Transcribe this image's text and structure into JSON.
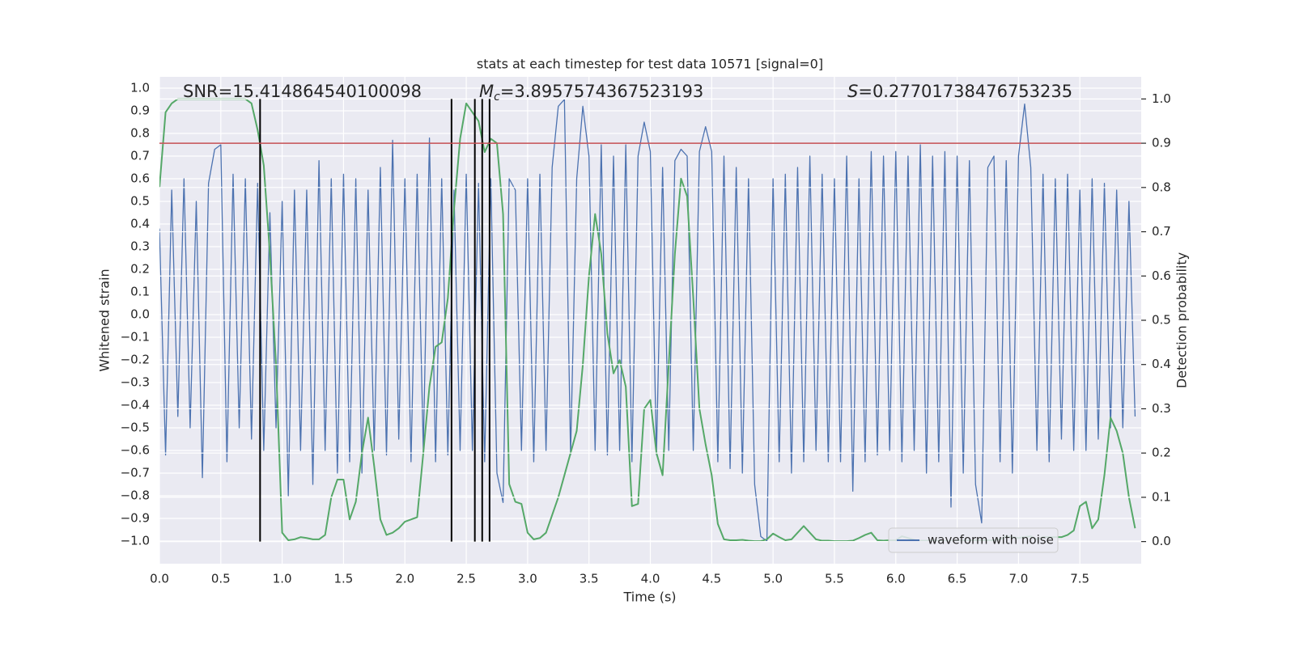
{
  "chart_data": {
    "type": "line",
    "title": "stats at each timestep for test data 10571 [signal=0]",
    "xlabel": "Time (s)",
    "ylabel": "Whitened strain",
    "y2label": "Detection probability",
    "annotations": [
      {
        "text": "SNR=15.414864540100098"
      },
      {
        "symbol": "M",
        "subscript": "c",
        "text": "=3.8957574367523193"
      },
      {
        "symbol": "S",
        "text": "=0.27701738476753235"
      }
    ],
    "xlim": [
      0,
      8
    ],
    "ylim": [
      -1.1,
      1.05
    ],
    "y2lim": [
      -0.05,
      1.05
    ],
    "xticks": [
      {
        "value": 0,
        "label": "0.0"
      },
      {
        "value": 0.5,
        "label": "0.5"
      },
      {
        "value": 1,
        "label": "1.0"
      },
      {
        "value": 1.5,
        "label": "1.5"
      },
      {
        "value": 2,
        "label": "2.0"
      },
      {
        "value": 2.5,
        "label": "2.5"
      },
      {
        "value": 3,
        "label": "3.0"
      },
      {
        "value": 3.5,
        "label": "3.5"
      },
      {
        "value": 4,
        "label": "4.0"
      },
      {
        "value": 4.5,
        "label": "4.5"
      },
      {
        "value": 5,
        "label": "5.0"
      },
      {
        "value": 5.5,
        "label": "5.5"
      },
      {
        "value": 6,
        "label": "6.0"
      },
      {
        "value": 6.5,
        "label": "6.5"
      },
      {
        "value": 7,
        "label": "7.0"
      },
      {
        "value": 7.5,
        "label": "7.5"
      }
    ],
    "yticks": [
      {
        "value": -1.0,
        "label": "−1.0"
      },
      {
        "value": -0.9,
        "label": "−0.9"
      },
      {
        "value": -0.8,
        "label": "−0.8"
      },
      {
        "value": -0.7,
        "label": "−0.7"
      },
      {
        "value": -0.6,
        "label": "−0.6"
      },
      {
        "value": -0.5,
        "label": "−0.5"
      },
      {
        "value": -0.4,
        "label": "−0.4"
      },
      {
        "value": -0.3,
        "label": "−0.3"
      },
      {
        "value": -0.2,
        "label": "−0.2"
      },
      {
        "value": -0.1,
        "label": "−0.1"
      },
      {
        "value": 0,
        "label": "0.0"
      },
      {
        "value": 0.1,
        "label": "0.1"
      },
      {
        "value": 0.2,
        "label": "0.2"
      },
      {
        "value": 0.3,
        "label": "0.3"
      },
      {
        "value": 0.4,
        "label": "0.4"
      },
      {
        "value": 0.5,
        "label": "0.5"
      },
      {
        "value": 0.6,
        "label": "0.6"
      },
      {
        "value": 0.7,
        "label": "0.7"
      },
      {
        "value": 0.8,
        "label": "0.8"
      },
      {
        "value": 0.9,
        "label": "0.9"
      },
      {
        "value": 1.0,
        "label": "1.0"
      }
    ],
    "y2ticks": [
      {
        "value": 0,
        "label": "0.0"
      },
      {
        "value": 0.1,
        "label": "0.1"
      },
      {
        "value": 0.2,
        "label": "0.2"
      },
      {
        "value": 0.3,
        "label": "0.3"
      },
      {
        "value": 0.4,
        "label": "0.4"
      },
      {
        "value": 0.5,
        "label": "0.5"
      },
      {
        "value": 0.6,
        "label": "0.6"
      },
      {
        "value": 0.7,
        "label": "0.7"
      },
      {
        "value": 0.8,
        "label": "0.8"
      },
      {
        "value": 0.9,
        "label": "0.9"
      },
      {
        "value": 1.0,
        "label": "1.0"
      }
    ],
    "grid": true,
    "legend": "lower right",
    "x": [
      0,
      0.05,
      0.1,
      0.15,
      0.2,
      0.25,
      0.3,
      0.35,
      0.4,
      0.45,
      0.5,
      0.55,
      0.6,
      0.65,
      0.7,
      0.75,
      0.8,
      0.85,
      0.9,
      0.95,
      1,
      1.05,
      1.1,
      1.15,
      1.2,
      1.25,
      1.3,
      1.35,
      1.4,
      1.45,
      1.5,
      1.55,
      1.6,
      1.65,
      1.7,
      1.75,
      1.8,
      1.85,
      1.9,
      1.95,
      2,
      2.05,
      2.1,
      2.15,
      2.2,
      2.25,
      2.3,
      2.35,
      2.4,
      2.45,
      2.5,
      2.55,
      2.6,
      2.65,
      2.7,
      2.75,
      2.8,
      2.85,
      2.9,
      2.95,
      3,
      3.05,
      3.1,
      3.15,
      3.2,
      3.25,
      3.3,
      3.35,
      3.4,
      3.45,
      3.5,
      3.55,
      3.6,
      3.65,
      3.7,
      3.75,
      3.8,
      3.85,
      3.9,
      3.95,
      4,
      4.05,
      4.1,
      4.15,
      4.2,
      4.25,
      4.3,
      4.35,
      4.4,
      4.45,
      4.5,
      4.55,
      4.6,
      4.65,
      4.7,
      4.75,
      4.8,
      4.85,
      4.9,
      4.95,
      5,
      5.05,
      5.1,
      5.15,
      5.2,
      5.25,
      5.3,
      5.35,
      5.4,
      5.45,
      5.5,
      5.55,
      5.6,
      5.65,
      5.7,
      5.75,
      5.8,
      5.85,
      5.9,
      5.95,
      6,
      6.05,
      6.1,
      6.15,
      6.2,
      6.25,
      6.3,
      6.35,
      6.4,
      6.45,
      6.5,
      6.55,
      6.6,
      6.65,
      6.7,
      6.75,
      6.8,
      6.85,
      6.9,
      6.95,
      7,
      7.05,
      7.1,
      7.15,
      7.2,
      7.25,
      7.3,
      7.35,
      7.4,
      7.45,
      7.5,
      7.55,
      7.6,
      7.65,
      7.7,
      7.75,
      7.8,
      7.85,
      7.9,
      7.95
    ],
    "series": [
      {
        "name": "waveform with noise",
        "color": "#4c72b0",
        "values": [
          0.38,
          -0.62,
          0.55,
          -0.45,
          0.6,
          -0.5,
          0.5,
          -0.72,
          0.58,
          0.73,
          0.75,
          -0.65,
          0.62,
          -0.5,
          0.6,
          -0.55,
          0.58,
          -0.6,
          0.45,
          -0.5,
          0.5,
          -0.8,
          0.55,
          -0.6,
          0.55,
          -0.75,
          0.68,
          -0.6,
          0.6,
          -0.7,
          0.62,
          -0.65,
          0.6,
          -0.7,
          0.55,
          -0.6,
          0.65,
          -0.62,
          0.77,
          -0.55,
          0.6,
          -0.65,
          0.62,
          -0.6,
          0.78,
          -0.65,
          0.6,
          -0.62,
          0.55,
          -0.6,
          0.62,
          -0.6,
          0.58,
          -0.65,
          0.6,
          -0.7,
          -0.83,
          0.6,
          0.55,
          -0.6,
          0.6,
          -0.65,
          0.62,
          -0.6,
          0.65,
          0.92,
          0.95,
          -0.62,
          0.6,
          0.92,
          0.7,
          -0.6,
          0.75,
          -0.62,
          0.7,
          -0.6,
          0.75,
          -0.65,
          0.7,
          0.85,
          0.72,
          -0.62,
          0.65,
          -0.6,
          0.68,
          0.73,
          0.7,
          -0.6,
          0.72,
          0.83,
          0.72,
          -0.65,
          0.7,
          -0.68,
          0.65,
          -0.7,
          0.6,
          -0.75,
          -0.98,
          -1.0,
          0.6,
          -0.65,
          0.62,
          -0.7,
          0.65,
          -0.65,
          0.7,
          -0.6,
          0.62,
          -0.65,
          0.6,
          -0.65,
          0.7,
          -0.78,
          0.6,
          -0.65,
          0.72,
          -0.62,
          0.7,
          -0.6,
          0.72,
          -0.65,
          0.7,
          -0.6,
          0.75,
          -0.7,
          0.7,
          -0.65,
          0.72,
          -0.85,
          0.7,
          -0.7,
          0.68,
          -0.75,
          -0.92,
          0.65,
          0.7,
          -0.65,
          0.68,
          -0.7,
          0.7,
          0.93,
          0.65,
          -0.6,
          0.62,
          -0.65,
          0.6,
          -0.55,
          0.62,
          -0.6,
          0.55,
          -0.6,
          0.6,
          -0.55,
          0.58,
          -0.5,
          0.55,
          -0.5,
          0.5,
          -0.45
        ]
      },
      {
        "color": "#55a868",
        "axis": "y2",
        "values": [
          0.8,
          0.97,
          0.99,
          1.0,
          1.0,
          1.0,
          1.0,
          1.0,
          1.0,
          1.0,
          1.0,
          1.0,
          1.0,
          1.0,
          1.0,
          0.99,
          0.93,
          0.85,
          0.65,
          0.4,
          0.02,
          0.003,
          0.005,
          0.01,
          0.008,
          0.005,
          0.005,
          0.015,
          0.1,
          0.14,
          0.14,
          0.05,
          0.09,
          0.2,
          0.28,
          0.17,
          0.05,
          0.015,
          0.02,
          0.03,
          0.045,
          0.05,
          0.055,
          0.2,
          0.35,
          0.44,
          0.45,
          0.55,
          0.75,
          0.91,
          0.99,
          0.97,
          0.95,
          0.88,
          0.91,
          0.9,
          0.74,
          0.13,
          0.09,
          0.085,
          0.02,
          0.005,
          0.008,
          0.02,
          0.06,
          0.1,
          0.15,
          0.2,
          0.25,
          0.4,
          0.6,
          0.74,
          0.65,
          0.47,
          0.38,
          0.41,
          0.35,
          0.08,
          0.085,
          0.3,
          0.32,
          0.2,
          0.15,
          0.4,
          0.65,
          0.82,
          0.78,
          0.55,
          0.3,
          0.22,
          0.15,
          0.04,
          0.005,
          0.003,
          0.003,
          0.004,
          0.002,
          0.001,
          0.001,
          0.005,
          0.018,
          0.01,
          0.003,
          0.005,
          0.02,
          0.035,
          0.02,
          0.005,
          0.002,
          0.002,
          0.001,
          0.001,
          0.001,
          0.002,
          0.008,
          0.015,
          0.02,
          0.003,
          0.002,
          0.003,
          0.003,
          0.012,
          0.008,
          0.004,
          0.002,
          0.002,
          0.002,
          0.002,
          0.001,
          0.001,
          0.001,
          0.002,
          0.002,
          0.003,
          0.003,
          0.003,
          0.003,
          0.005,
          0.012,
          0.01,
          0.008,
          0.01,
          0.012,
          0.005,
          0.01,
          0.01,
          0.01,
          0.01,
          0.015,
          0.025,
          0.08,
          0.09,
          0.03,
          0.05,
          0.15,
          0.28,
          0.25,
          0.2,
          0.1,
          0.03
        ]
      }
    ],
    "vlines": {
      "x": [
        0.82,
        2.38,
        2.57,
        2.63,
        2.69
      ],
      "ymin": 0,
      "ymax": 1,
      "axis": "y2",
      "color": "#000000"
    },
    "hline": {
      "y": 0.9,
      "axis": "y2",
      "color": "#c44e52"
    }
  }
}
